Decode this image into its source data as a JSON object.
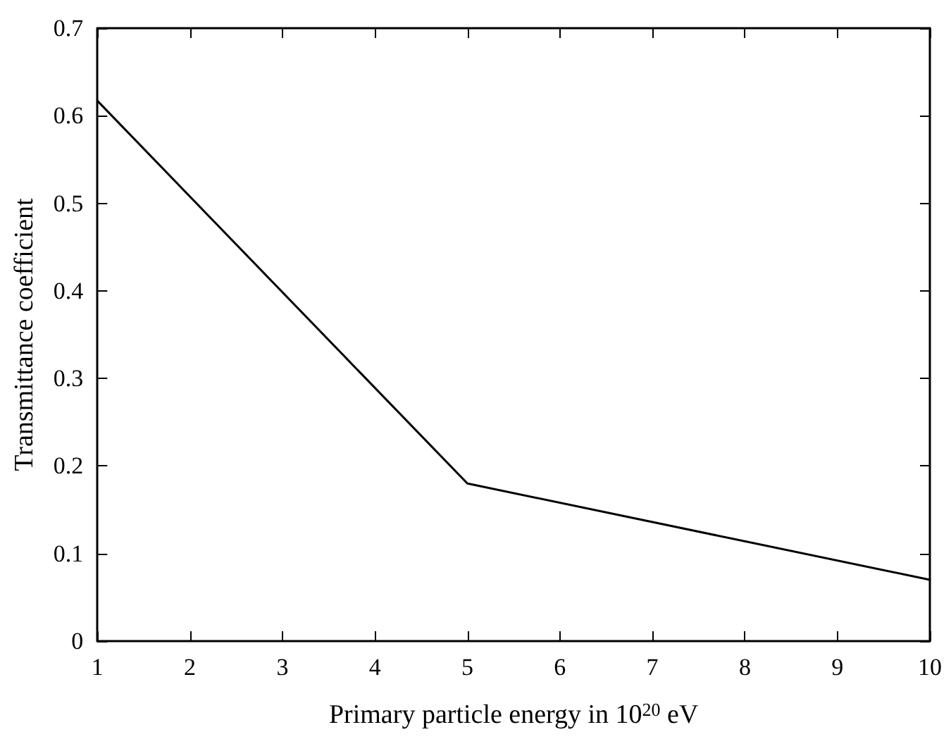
{
  "chart_data": {
    "type": "line",
    "xlabel": "Primary particle energy in 10$^{20}$ eV",
    "ylabel": "Transmittance coefficient",
    "x": [
      1,
      5,
      10
    ],
    "series": [
      {
        "color": "#000000",
        "values": [
          0.617,
          0.18,
          0.07
        ]
      }
    ],
    "xlim": [
      1,
      10
    ],
    "xticks": [
      1,
      2,
      3,
      4,
      5,
      6,
      7,
      8,
      9,
      10
    ],
    "ylim": [
      0,
      0.7
    ],
    "yticks": [
      0,
      0.1,
      0.2,
      0.3,
      0.4,
      0.5,
      0.6,
      0.7
    ],
    "marker": "none",
    "line_style": "solid"
  }
}
